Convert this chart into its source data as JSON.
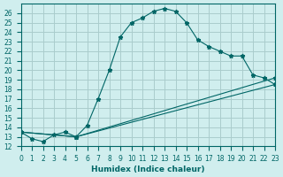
{
  "xlabel": "Humidex (Indice chaleur)",
  "ylabel": "",
  "background_color": "#d0eeee",
  "grid_color": "#aacccc",
  "line_color": "#006666",
  "xlim": [
    0,
    23
  ],
  "ylim": [
    12,
    27
  ],
  "xticks": [
    0,
    1,
    2,
    3,
    4,
    5,
    6,
    7,
    8,
    9,
    10,
    11,
    12,
    13,
    14,
    15,
    16,
    17,
    18,
    19,
    20,
    21,
    22,
    23
  ],
  "yticks": [
    12,
    13,
    14,
    15,
    16,
    17,
    18,
    19,
    20,
    21,
    22,
    23,
    24,
    25,
    26
  ],
  "series": [
    {
      "x": [
        0,
        1,
        2,
        3,
        4,
        5,
        6,
        7,
        8,
        9,
        10,
        11,
        12,
        13,
        14,
        15,
        16,
        17,
        18,
        19,
        20,
        21,
        22,
        23
      ],
      "y": [
        13.5,
        12.8,
        12.5,
        13.2,
        13.5,
        13.0,
        14.2,
        17.0,
        20.0,
        23.5,
        25.0,
        25.5,
        26.2,
        26.5,
        26.2,
        25.0,
        23.2,
        22.5,
        22.0,
        21.5,
        21.5,
        19.5,
        19.2,
        18.5
      ]
    },
    {
      "x": [
        0,
        5,
        23
      ],
      "y": [
        13.5,
        13.0,
        18.5
      ]
    },
    {
      "x": [
        0,
        5,
        23
      ],
      "y": [
        13.5,
        13.0,
        19.2
      ]
    }
  ]
}
